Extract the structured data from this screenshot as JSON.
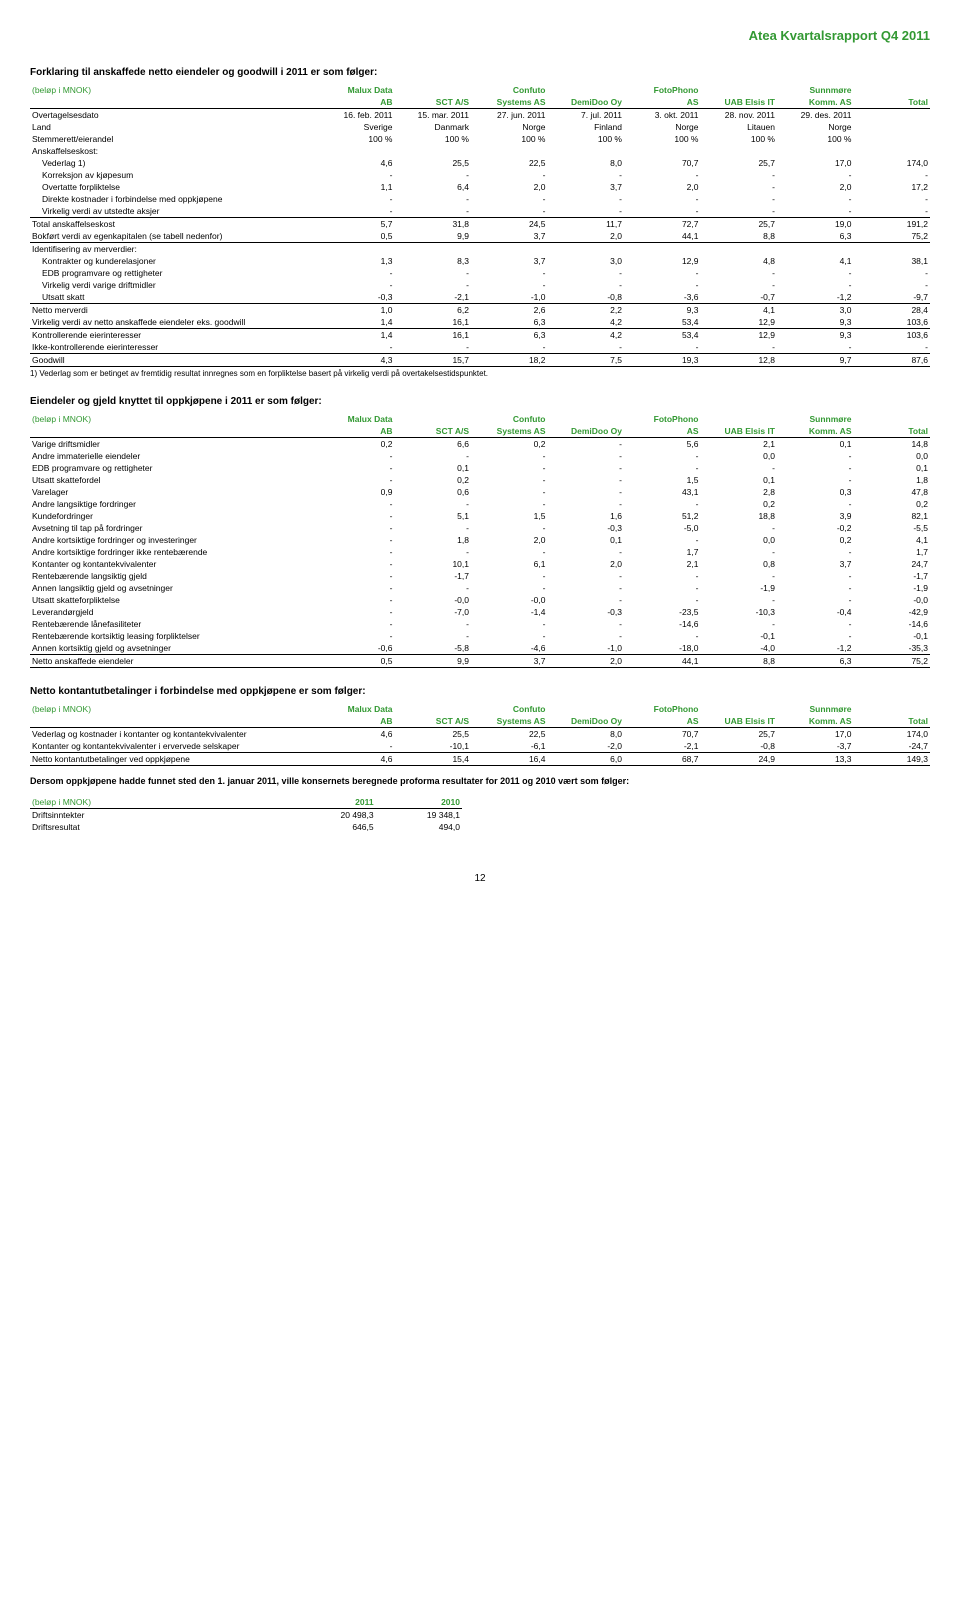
{
  "header": {
    "title": "Atea Kvartalsrapport Q4 2011"
  },
  "section1": {
    "title": "Forklaring til anskaffede netto eiendeler og goodwill i 2011 er som følger:",
    "head_top": [
      "(beløp i MNOK)",
      "Malux Data",
      "",
      "Confuto",
      "",
      "FotoPhono",
      "",
      "Sunnmøre",
      ""
    ],
    "head_bot": [
      "",
      "AB",
      "SCT A/S",
      "Systems AS",
      "DemiDoo Oy",
      "AS",
      "UAB Elsis IT",
      "Komm. AS",
      "Total"
    ],
    "rows": [
      {
        "label": "Overtagelsesdato",
        "v": [
          "16. feb. 2011",
          "15. mar. 2011",
          "27. jun. 2011",
          "7. jul. 2011",
          "3. okt. 2011",
          "28. nov. 2011",
          "29. des. 2011",
          ""
        ]
      },
      {
        "label": "Land",
        "v": [
          "Sverige",
          "Danmark",
          "Norge",
          "Finland",
          "Norge",
          "Litauen",
          "Norge",
          ""
        ]
      },
      {
        "label": "Stemmerett/eierandel",
        "v": [
          "100 %",
          "100 %",
          "100 %",
          "100 %",
          "100 %",
          "100 %",
          "100 %",
          ""
        ]
      },
      {
        "label": "Anskaffelseskost:",
        "v": [
          "",
          "",
          "",
          "",
          "",
          "",
          "",
          ""
        ]
      },
      {
        "label": "Vederlag 1)",
        "v": [
          "4,6",
          "25,5",
          "22,5",
          "8,0",
          "70,7",
          "25,7",
          "17,0",
          "174,0"
        ],
        "indent": true
      },
      {
        "label": "Korreksjon av kjøpesum",
        "v": [
          "-",
          "-",
          "-",
          "-",
          "-",
          "-",
          "-",
          "-"
        ],
        "indent": true
      },
      {
        "label": "Overtatte forpliktelse",
        "v": [
          "1,1",
          "6,4",
          "2,0",
          "3,7",
          "2,0",
          "-",
          "2,0",
          "17,2"
        ],
        "indent": true
      },
      {
        "label": "Direkte kostnader i forbindelse med oppkjøpene",
        "v": [
          "-",
          "-",
          "-",
          "-",
          "-",
          "-",
          "-",
          "-"
        ],
        "indent": true
      },
      {
        "label": "Virkelig verdi av utstedte aksjer",
        "v": [
          "-",
          "-",
          "-",
          "-",
          "-",
          "-",
          "-",
          "-"
        ],
        "indent": true
      },
      {
        "label": "Total anskaffelseskost",
        "v": [
          "5,7",
          "31,8",
          "24,5",
          "11,7",
          "72,7",
          "25,7",
          "19,0",
          "191,2"
        ],
        "bt": true
      },
      {
        "label": "Bokført verdi av egenkapitalen (se tabell nedenfor)",
        "v": [
          "0,5",
          "9,9",
          "3,7",
          "2,0",
          "44,1",
          "8,8",
          "6,3",
          "75,2"
        ],
        "bb": true
      },
      {
        "label": "Identifisering av merverdier:",
        "v": [
          "",
          "",
          "",
          "",
          "",
          "",
          "",
          ""
        ]
      },
      {
        "label": "Kontrakter og kunderelasjoner",
        "v": [
          "1,3",
          "8,3",
          "3,7",
          "3,0",
          "12,9",
          "4,8",
          "4,1",
          "38,1"
        ],
        "indent": true
      },
      {
        "label": "EDB programvare og rettigheter",
        "v": [
          "-",
          "-",
          "-",
          "-",
          "-",
          "-",
          "-",
          "-"
        ],
        "indent": true
      },
      {
        "label": "Virkelig verdi varige driftmidler",
        "v": [
          "-",
          "-",
          "-",
          "-",
          "-",
          "-",
          "-",
          "-"
        ],
        "indent": true
      },
      {
        "label": "Utsatt skatt",
        "v": [
          "-0,3",
          "-2,1",
          "-1,0",
          "-0,8",
          "-3,6",
          "-0,7",
          "-1,2",
          "-9,7"
        ],
        "indent": true
      },
      {
        "label": "Netto merverdi",
        "v": [
          "1,0",
          "6,2",
          "2,6",
          "2,2",
          "9,3",
          "4,1",
          "3,0",
          "28,4"
        ],
        "bt": true
      },
      {
        "label": "Virkelig verdi av netto anskaffede eiendeler eks. goodwill",
        "v": [
          "1,4",
          "16,1",
          "6,3",
          "4,2",
          "53,4",
          "12,9",
          "9,3",
          "103,6"
        ],
        "bb": true
      },
      {
        "label": "Kontrollerende eierinteresser",
        "v": [
          "1,4",
          "16,1",
          "6,3",
          "4,2",
          "53,4",
          "12,9",
          "9,3",
          "103,6"
        ]
      },
      {
        "label": "Ikke-kontrollerende eierinteresser",
        "v": [
          "-",
          "-",
          "-",
          "-",
          "-",
          "-",
          "-",
          "-"
        ]
      },
      {
        "label": "Goodwill",
        "v": [
          "4,3",
          "15,7",
          "18,2",
          "7,5",
          "19,3",
          "12,8",
          "9,7",
          "87,6"
        ],
        "bt": true,
        "bb": true
      }
    ],
    "footnote": "1) Vederlag som er betinget av fremtidig resultat innregnes som en forpliktelse basert på virkelig verdi på overtakelsestidspunktet."
  },
  "section2": {
    "title": "Eiendeler og gjeld knyttet til oppkjøpene i 2011 er som følger:",
    "head_top": [
      "(beløp i MNOK)",
      "Malux Data",
      "",
      "Confuto",
      "",
      "FotoPhono",
      "",
      "Sunnmøre",
      ""
    ],
    "head_bot": [
      "",
      "AB",
      "SCT A/S",
      "Systems AS",
      "DemiDoo Oy",
      "AS",
      "UAB Elsis IT",
      "Komm. AS",
      "Total"
    ],
    "rows": [
      {
        "label": "Varige driftsmidler",
        "v": [
          "0,2",
          "6,6",
          "0,2",
          "-",
          "5,6",
          "2,1",
          "0,1",
          "14,8"
        ]
      },
      {
        "label": "Andre immaterielle eiendeler",
        "v": [
          "-",
          "-",
          "-",
          "-",
          "-",
          "0,0",
          "-",
          "0,0"
        ]
      },
      {
        "label": "EDB programvare og rettigheter",
        "v": [
          "-",
          "0,1",
          "-",
          "-",
          "-",
          "-",
          "-",
          "0,1"
        ]
      },
      {
        "label": "Utsatt skattefordel",
        "v": [
          "-",
          "0,2",
          "-",
          "-",
          "1,5",
          "0,1",
          "-",
          "1,8"
        ]
      },
      {
        "label": "Varelager",
        "v": [
          "0,9",
          "0,6",
          "-",
          "-",
          "43,1",
          "2,8",
          "0,3",
          "47,8"
        ]
      },
      {
        "label": "Andre langsiktige fordringer",
        "v": [
          "-",
          "-",
          "-",
          "-",
          "-",
          "0,2",
          "-",
          "0,2"
        ]
      },
      {
        "label": "Kundefordringer",
        "v": [
          "-",
          "5,1",
          "1,5",
          "1,6",
          "51,2",
          "18,8",
          "3,9",
          "82,1"
        ]
      },
      {
        "label": "Avsetning til tap på fordringer",
        "v": [
          "-",
          "-",
          "-",
          "-0,3",
          "-5,0",
          "-",
          "-0,2",
          "-5,5"
        ]
      },
      {
        "label": "Andre kortsiktige fordringer og investeringer",
        "v": [
          "-",
          "1,8",
          "2,0",
          "0,1",
          "-",
          "0,0",
          "0,2",
          "4,1"
        ]
      },
      {
        "label": "Andre kortsiktige fordringer ikke rentebærende",
        "v": [
          "-",
          "-",
          "-",
          "-",
          "1,7",
          "-",
          "-",
          "1,7"
        ]
      },
      {
        "label": "Kontanter og kontantekvivalenter",
        "v": [
          "-",
          "10,1",
          "6,1",
          "2,0",
          "2,1",
          "0,8",
          "3,7",
          "24,7"
        ]
      },
      {
        "label": "Rentebærende langsiktig gjeld",
        "v": [
          "-",
          "-1,7",
          "-",
          "-",
          "-",
          "-",
          "-",
          "-1,7"
        ]
      },
      {
        "label": "Annen langsiktig gjeld og avsetninger",
        "v": [
          "-",
          "-",
          "-",
          "-",
          "-",
          "-1,9",
          "-",
          "-1,9"
        ]
      },
      {
        "label": "Utsatt skatteforpliktelse",
        "v": [
          "-",
          "-0,0",
          "-0,0",
          "-",
          "-",
          "-",
          "-",
          "-0,0"
        ]
      },
      {
        "label": "Leverandørgjeld",
        "v": [
          "-",
          "-7,0",
          "-1,4",
          "-0,3",
          "-23,5",
          "-10,3",
          "-0,4",
          "-42,9"
        ]
      },
      {
        "label": "Rentebærende lånefasiliteter",
        "v": [
          "-",
          "-",
          "-",
          "-",
          "-14,6",
          "-",
          "-",
          "-14,6"
        ]
      },
      {
        "label": "Rentebærende kortsiktig leasing forpliktelser",
        "v": [
          "-",
          "-",
          "-",
          "-",
          "-",
          "-0,1",
          "-",
          "-0,1"
        ]
      },
      {
        "label": "Annen kortsiktig gjeld og avsetninger",
        "v": [
          "-0,6",
          "-5,8",
          "-4,6",
          "-1,0",
          "-18,0",
          "-4,0",
          "-1,2",
          "-35,3"
        ]
      },
      {
        "label": "Netto anskaffede eiendeler",
        "v": [
          "0,5",
          "9,9",
          "3,7",
          "2,0",
          "44,1",
          "8,8",
          "6,3",
          "75,2"
        ],
        "bt": true,
        "bb": true
      }
    ]
  },
  "section3": {
    "title": "Netto kontantutbetalinger i forbindelse med oppkjøpene er som følger:",
    "head_top": [
      "(beløp i MNOK)",
      "Malux Data",
      "",
      "Confuto",
      "",
      "FotoPhono",
      "",
      "Sunnmøre",
      ""
    ],
    "head_bot": [
      "",
      "AB",
      "SCT A/S",
      "Systems AS",
      "DemiDoo Oy",
      "AS",
      "UAB Elsis IT",
      "Komm. AS",
      "Total"
    ],
    "rows": [
      {
        "label": "Vederlag og kostnader i kontanter og kontantekvivalenter",
        "v": [
          "4,6",
          "25,5",
          "22,5",
          "8,0",
          "70,7",
          "25,7",
          "17,0",
          "174,0"
        ]
      },
      {
        "label": "Kontanter og kontantekvivalenter i ervervede selskaper",
        "v": [
          "-",
          "-10,1",
          "-6,1",
          "-2,0",
          "-2,1",
          "-0,8",
          "-3,7",
          "-24,7"
        ]
      },
      {
        "label": "Netto kontantutbetalinger ved oppkjøpene",
        "v": [
          "4,6",
          "15,4",
          "16,4",
          "6,0",
          "68,7",
          "24,9",
          "13,3",
          "149,3"
        ],
        "bt": true,
        "bb": true
      }
    ]
  },
  "section4": {
    "paragraph": "Dersom oppkjøpene hadde funnet sted den 1. januar 2011, ville konsernets beregnede proforma resultater for 2011 og 2010 vært som følger:",
    "head": [
      "(beløp i MNOK)",
      "2011",
      "2010"
    ],
    "rows": [
      {
        "label": "Driftsinntekter",
        "v": [
          "20 498,3",
          "19 348,1"
        ]
      },
      {
        "label": "Driftsresultat",
        "v": [
          "646,5",
          "494,0"
        ]
      }
    ]
  },
  "page_number": "12"
}
